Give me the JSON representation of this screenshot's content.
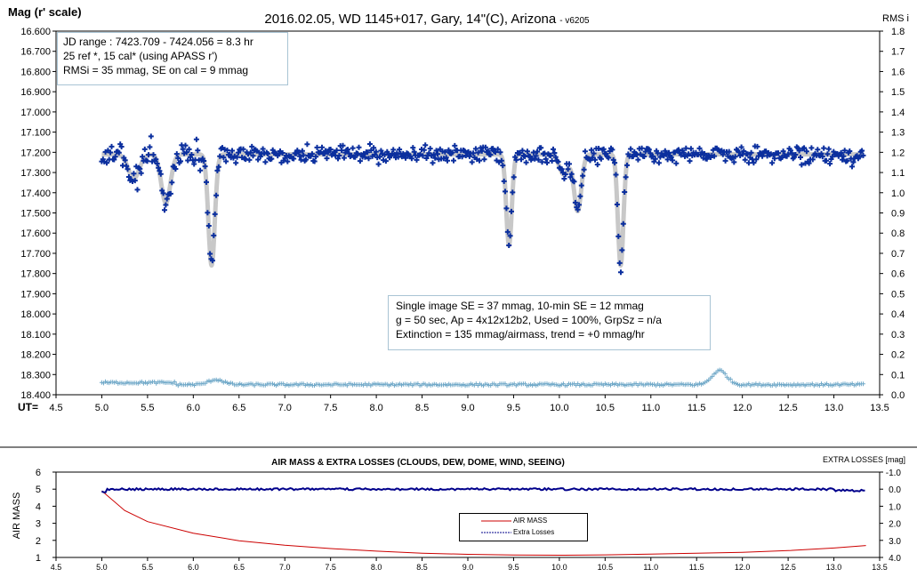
{
  "chart_data": [
    {
      "type": "scatter",
      "title": "2016.02.05,  WD 1145+017,  Gary,  14\"(C), Arizona",
      "version": "- v6205",
      "ylabel": "Mag (r' scale)",
      "y2label": "RMS i",
      "xlabel": "UT=",
      "xlim": [
        4.5,
        13.5
      ],
      "ylim": [
        18.4,
        16.6
      ],
      "y2lim": [
        0.0,
        1.8
      ],
      "x_ticks": [
        "4.5",
        "5.0",
        "5.5",
        "6.0",
        "6.5",
        "7.0",
        "7.5",
        "8.0",
        "8.5",
        "9.0",
        "9.5",
        "10.0",
        "10.5",
        "11.0",
        "11.5",
        "12.0",
        "12.5",
        "13.0",
        "13.5"
      ],
      "y_ticks": [
        "16.600",
        "16.700",
        "16.800",
        "16.900",
        "17.000",
        "17.100",
        "17.200",
        "17.300",
        "17.400",
        "17.500",
        "17.600",
        "17.700",
        "17.800",
        "17.900",
        "18.000",
        "18.100",
        "18.200",
        "18.300",
        "18.400"
      ],
      "y2_ticks": [
        "1.8",
        "1.7",
        "1.6",
        "1.5",
        "1.4",
        "1.3",
        "1.2",
        "1.1",
        "1.0",
        "0.9",
        "0.8",
        "0.7",
        "0.6",
        "0.5",
        "0.4",
        "0.3",
        "0.2",
        "0.1",
        "0.0"
      ],
      "info_box_top": [
        "JD range  : 7423.709 - 7424.056  = 8.3 hr",
        " 25 ref *, 15 cal* (using APASS r')",
        "RMSi = 35 mmag, SE on cal = 9 mmag"
      ],
      "info_box_mid": [
        "Single image SE = 37 mmag, 10-min SE = 12 mmag",
        "g = 50 sec, Ap = 4x12x12b2, Used = 100%, GrpSz = n/a",
        "Extinction = 135 mmag/airmass, trend = +0 mmag/hr"
      ],
      "series": [
        {
          "role": "magnitude",
          "color": "#0b2f9e",
          "marker": "plus",
          "baseline": 17.21,
          "dips": [
            {
              "center": 5.35,
              "depth": 0.12,
              "width": 0.06
            },
            {
              "center": 5.7,
              "depth": 0.24,
              "width": 0.05
            },
            {
              "center": 6.2,
              "depth": 0.55,
              "width": 0.035
            },
            {
              "center": 9.45,
              "depth": 0.45,
              "width": 0.03
            },
            {
              "center": 10.05,
              "depth": 0.1,
              "width": 0.05
            },
            {
              "center": 10.2,
              "depth": 0.28,
              "width": 0.04
            },
            {
              "center": 10.67,
              "depth": 0.55,
              "width": 0.03
            }
          ]
        },
        {
          "role": "model",
          "color": "#c8c8c8"
        },
        {
          "role": "rms",
          "color": "#6fa8c8",
          "level": 0.05,
          "bumps": [
            {
              "center": 6.25,
              "height": 0.025
            },
            {
              "center": 11.75,
              "height": 0.07
            }
          ]
        }
      ]
    },
    {
      "type": "line",
      "title": "AIR MASS & EXTRA LOSSES (CLOUDS, DEW, DOME, WIND, SEEING)",
      "ylabel": "AIR MASS",
      "y2label": "EXTRA LOSSES [mag]",
      "xlim": [
        4.5,
        13.5
      ],
      "ylim": [
        1,
        6
      ],
      "y2lim": [
        4.0,
        -1.0
      ],
      "x_ticks": [
        "4.5",
        "5.0",
        "5.5",
        "6.0",
        "6.5",
        "7.0",
        "7.5",
        "8.0",
        "8.5",
        "9.0",
        "9.5",
        "10.0",
        "10.5",
        "11.0",
        "11.5",
        "12.0",
        "12.5",
        "13.0",
        "13.5"
      ],
      "y_ticks": [
        "6",
        "5",
        "4",
        "3",
        "2",
        "1"
      ],
      "y2_ticks": [
        "-1.0",
        "0.0",
        "1.0",
        "2.0",
        "3.0",
        "4.0"
      ],
      "legend": [
        "AIR MASS",
        "Extra Losses"
      ],
      "series": [
        {
          "name": "AIR MASS",
          "color": "#cc0000",
          "x": [
            5.0,
            5.25,
            5.5,
            6.0,
            6.5,
            7.0,
            7.5,
            8.0,
            8.5,
            9.0,
            9.5,
            10.0,
            10.5,
            11.0,
            11.5,
            12.0,
            12.5,
            13.0,
            13.35
          ],
          "values": [
            4.9,
            3.75,
            3.1,
            2.42,
            1.98,
            1.72,
            1.52,
            1.37,
            1.25,
            1.18,
            1.14,
            1.13,
            1.15,
            1.2,
            1.25,
            1.3,
            1.4,
            1.55,
            1.7
          ]
        },
        {
          "name": "Extra Losses",
          "color": "#00008b",
          "level": 0.0
        }
      ]
    }
  ]
}
